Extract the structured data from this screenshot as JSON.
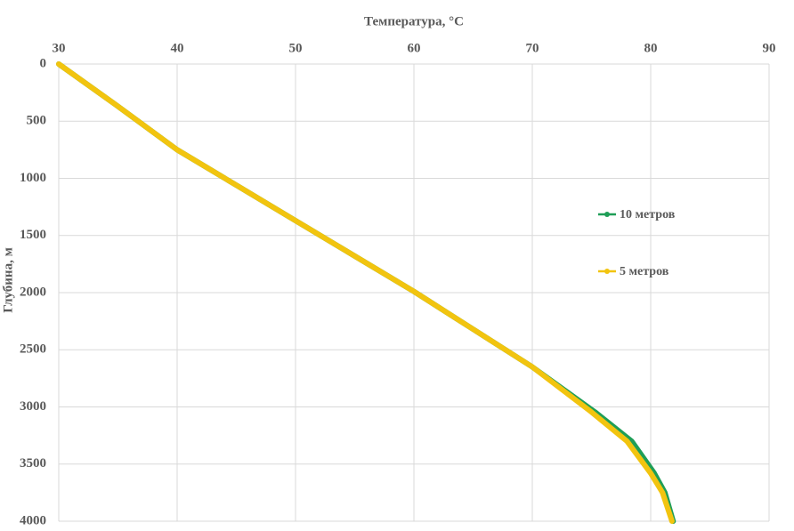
{
  "chart_data": {
    "type": "line",
    "xlabel": "Температура, °C",
    "ylabel": "Глубина, м",
    "xlim": [
      30,
      90
    ],
    "xticks": [
      30,
      40,
      50,
      60,
      70,
      80,
      90
    ],
    "x_axis_position": "top",
    "ylim": [
      0,
      4000
    ],
    "yticks": [
      0,
      500,
      1000,
      1500,
      2000,
      2500,
      3000,
      3500,
      4000
    ],
    "y_reversed": true,
    "grid": true,
    "legend": "right",
    "series": [
      {
        "name": "10 метров",
        "color": "#1f9e57",
        "x": [
          30,
          35,
          40,
          45,
          50,
          55,
          60,
          65,
          70,
          75.3,
          78.4,
          80.3,
          81.2,
          81.9
        ],
        "values": [
          0,
          370,
          750,
          1060,
          1370,
          1680,
          1990,
          2320,
          2650,
          3045,
          3300,
          3580,
          3750,
          4000
        ]
      },
      {
        "name": "5 метров",
        "color": "#f2c40f",
        "x": [
          30,
          35,
          40,
          45,
          50,
          55,
          60,
          65,
          70,
          75,
          78,
          80,
          81,
          81.8
        ],
        "values": [
          0,
          370,
          750,
          1060,
          1370,
          1680,
          1990,
          2320,
          2650,
          3045,
          3300,
          3580,
          3750,
          4000
        ]
      }
    ]
  }
}
